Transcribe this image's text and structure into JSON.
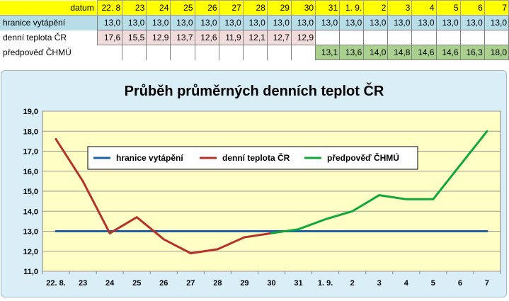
{
  "sheet": {
    "header_label": "datum",
    "dates": [
      "22. 8",
      "23",
      "24",
      "25",
      "26",
      "27",
      "28",
      "29",
      "30",
      "31",
      "1. 9.",
      "2",
      "3",
      "4",
      "5",
      "6",
      "7"
    ],
    "rows": [
      {
        "label": "hranice vytápění",
        "values": [
          "13,0",
          "13,0",
          "13,0",
          "13,0",
          "13,0",
          "13,0",
          "13,0",
          "13,0",
          "13,0",
          "13,0",
          "13,0",
          "13,0",
          "13,0",
          "13,0",
          "13,0",
          "13,0",
          "13,0"
        ]
      },
      {
        "label": "denní teplota ČR",
        "values": [
          "17,6",
          "15,5",
          "12,9",
          "13,7",
          "12,6",
          "11,9",
          "12,1",
          "12,7",
          "12,9",
          "",
          "",
          "",
          "",
          "",
          "",
          "",
          ""
        ]
      },
      {
        "label": "předpověď ČHMÚ",
        "values": [
          "",
          "",
          "",
          "",
          "",
          "",
          "",
          "",
          "",
          "13,1",
          "13,6",
          "14,0",
          "14,8",
          "14,6",
          "14,6",
          "16,3",
          "18,0"
        ]
      }
    ]
  },
  "colors": {
    "hranice": "#1f5fa8",
    "denni": "#b5322a",
    "predpoved": "#10a83a",
    "plot_bg": "#ffffc5",
    "frame_bg": "#d9eef7",
    "grid": "#9a9a9a"
  },
  "chart_data": {
    "type": "line",
    "title": "Průběh průměrných denních teplot ČR",
    "categories": [
      "22. 8.",
      "23",
      "24",
      "25",
      "26",
      "27",
      "28",
      "29",
      "30",
      "31",
      "1. 9.",
      "2",
      "3",
      "4",
      "5",
      "6",
      "7"
    ],
    "ylim": [
      11.0,
      19.0
    ],
    "yticks": [
      "11,0",
      "12,0",
      "13,0",
      "14,0",
      "15,0",
      "16,0",
      "17,0",
      "18,0",
      "19,0"
    ],
    "grid": true,
    "legend_position": "inside-top",
    "series": [
      {
        "name": "hranice vytápění",
        "color": "#1f5fa8",
        "values": [
          13.0,
          13.0,
          13.0,
          13.0,
          13.0,
          13.0,
          13.0,
          13.0,
          13.0,
          13.0,
          13.0,
          13.0,
          13.0,
          13.0,
          13.0,
          13.0,
          13.0
        ]
      },
      {
        "name": "denní teplota ČR",
        "color": "#b5322a",
        "values": [
          17.6,
          15.5,
          12.9,
          13.7,
          12.6,
          11.9,
          12.1,
          12.7,
          12.9,
          null,
          null,
          null,
          null,
          null,
          null,
          null,
          null
        ]
      },
      {
        "name": "předpověď ČHMÚ",
        "color": "#10a83a",
        "values": [
          null,
          null,
          null,
          null,
          null,
          null,
          null,
          null,
          12.9,
          13.1,
          13.6,
          14.0,
          14.8,
          14.6,
          14.6,
          16.3,
          18.0
        ]
      }
    ]
  }
}
